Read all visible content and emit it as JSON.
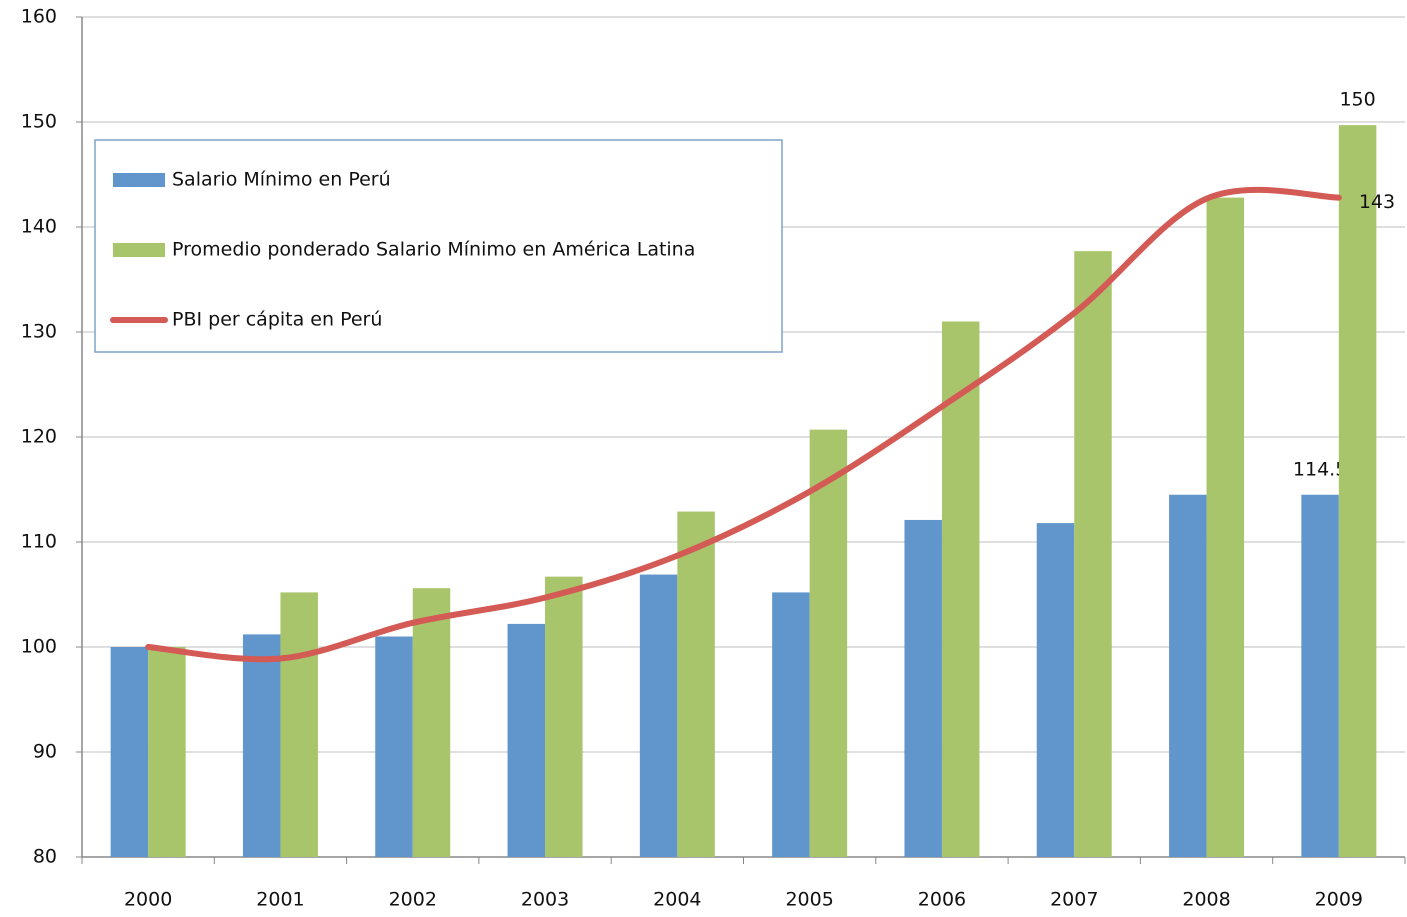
{
  "chart_data": {
    "type": "bar_line",
    "categories": [
      "2000",
      "2001",
      "2002",
      "2003",
      "2004",
      "2005",
      "2006",
      "2007",
      "2008",
      "2009"
    ],
    "series": [
      {
        "name": "Salario Mínimo en Perú",
        "type": "bar",
        "color": "#6096cc",
        "values": [
          100,
          101.2,
          101,
          102.2,
          106.9,
          105.2,
          112.1,
          111.8,
          114.5,
          114.5
        ],
        "value_labels": [
          null,
          null,
          null,
          null,
          null,
          null,
          null,
          null,
          null,
          "114.5"
        ]
      },
      {
        "name": "Promedio ponderado Salario Mínimo en América Latina",
        "type": "bar",
        "color": "#a9c56b",
        "values": [
          100,
          105.2,
          105.6,
          106.7,
          112.9,
          120.7,
          131,
          137.7,
          142.8,
          149.7
        ],
        "value_labels": [
          null,
          null,
          null,
          null,
          null,
          null,
          null,
          null,
          null,
          "150"
        ]
      },
      {
        "name": "PBI per cápita en Perú",
        "type": "line",
        "color": "#d45a55",
        "values": [
          100,
          98.9,
          102.3,
          104.7,
          108.7,
          114.8,
          122.9,
          131.8,
          142.7,
          142.8
        ],
        "value_labels": [
          null,
          null,
          null,
          null,
          null,
          null,
          null,
          null,
          null,
          "143"
        ]
      }
    ],
    "ylim": [
      80,
      160
    ],
    "yticks": [
      80,
      90,
      100,
      110,
      120,
      130,
      140,
      150,
      160
    ],
    "grid": true,
    "legend": "upper left",
    "smooth": true
  }
}
